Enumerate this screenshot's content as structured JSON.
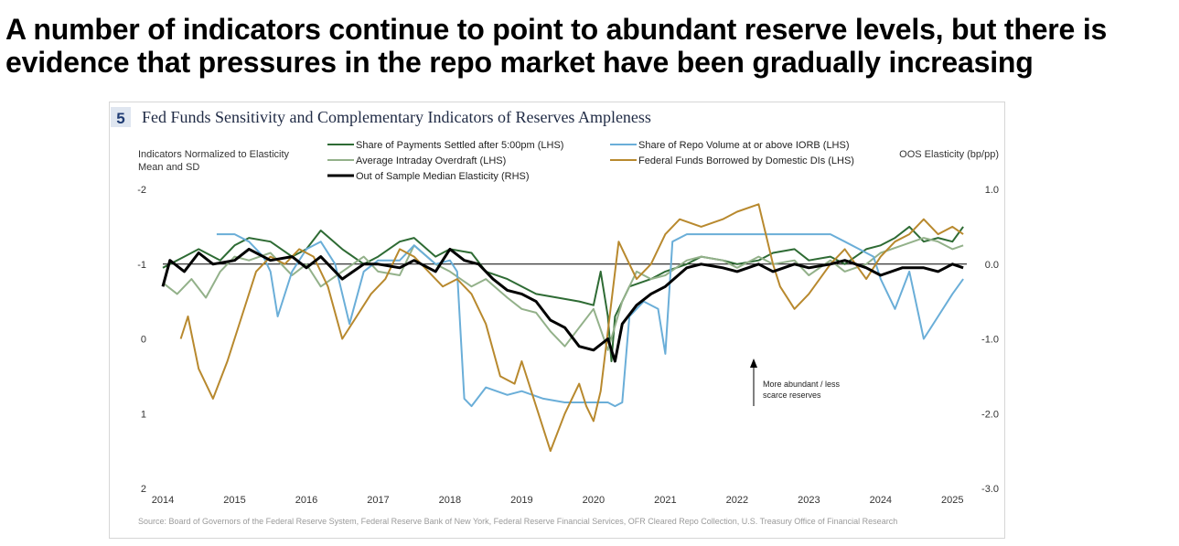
{
  "headline": {
    "line1": "A number of indicators continue to point to abundant reserve levels, but there is",
    "line2": "evidence that pressures in the repo market have been gradually increasing"
  },
  "figure": {
    "number": "5",
    "title": "Fed Funds Sensitivity and Complementary Indicators of Reserves Ampleness",
    "source": "Source: Board of Governors of the Federal Reserve System, Federal Reserve Bank of New York, Federal Reserve Financial Services, OFR Cleared Repo Collection, U.S. Treasury Office of Financial Research",
    "annotation_line1": "More abundant / less",
    "annotation_line2": "scarce reserves"
  },
  "chart_data": {
    "type": "line",
    "title": "Fed Funds Sensitivity and Complementary Indicators of Reserves Ampleness",
    "ylabel_left_line1": "Indicators Normalized to Elasticity",
    "ylabel_left_line2": "Mean and SD",
    "ylabel_right": "OOS Elasticity (bp/pp)",
    "y_left": {
      "range": [
        -2,
        2
      ],
      "inverted": true,
      "ticks": [
        "-2",
        "-1",
        "0",
        "1",
        "2"
      ]
    },
    "y_right": {
      "range": [
        -3.0,
        1.0
      ],
      "ticks": [
        "1.0",
        "0.0",
        "-1.0",
        "-2.0",
        "-3.0"
      ]
    },
    "x_range": [
      2014,
      2025.2
    ],
    "x_ticks": [
      "2014",
      "2015",
      "2016",
      "2017",
      "2018",
      "2019",
      "2020",
      "2021",
      "2022",
      "2023",
      "2024",
      "2025"
    ],
    "legend_position": "top",
    "grid": false,
    "colors": {
      "payments": "#2e6b34",
      "overdraft": "#93b18a",
      "median": "#000000",
      "repo": "#6aaed8",
      "borrowed": "#b8892e"
    },
    "series": [
      {
        "name": "Share of Payments Settled after 5:00pm (LHS)",
        "key": "payments",
        "axis": "left",
        "x": [
          2014.0,
          2014.3,
          2014.5,
          2014.8,
          2015.0,
          2015.2,
          2015.5,
          2015.8,
          2016.0,
          2016.2,
          2016.5,
          2016.8,
          2017.0,
          2017.3,
          2017.5,
          2017.8,
          2018.0,
          2018.3,
          2018.5,
          2018.8,
          2019.0,
          2019.2,
          2019.5,
          2019.8,
          2020.0,
          2020.1,
          2020.2,
          2020.25,
          2020.3,
          2020.5,
          2020.8,
          2021.0,
          2021.3,
          2021.5,
          2021.8,
          2022.0,
          2022.3,
          2022.5,
          2022.8,
          2023.0,
          2023.3,
          2023.5,
          2023.8,
          2024.0,
          2024.2,
          2024.4,
          2024.6,
          2024.8,
          2025.0,
          2025.15
        ],
        "values": [
          -0.95,
          -1.1,
          -1.2,
          -1.05,
          -1.25,
          -1.35,
          -1.3,
          -1.1,
          -1.2,
          -1.45,
          -1.2,
          -1.0,
          -1.1,
          -1.3,
          -1.35,
          -1.1,
          -1.2,
          -1.15,
          -0.9,
          -0.8,
          -0.7,
          -0.6,
          -0.55,
          -0.5,
          -0.45,
          -0.9,
          -0.3,
          0.3,
          -0.3,
          -0.7,
          -0.8,
          -0.9,
          -1.0,
          -1.1,
          -1.05,
          -1.0,
          -1.05,
          -1.15,
          -1.2,
          -1.05,
          -1.1,
          -1.0,
          -1.2,
          -1.25,
          -1.35,
          -1.5,
          -1.3,
          -1.35,
          -1.3,
          -1.5
        ]
      },
      {
        "name": "Average Intraday Overdraft (LHS)",
        "key": "overdraft",
        "axis": "left",
        "x": [
          2014.0,
          2014.2,
          2014.4,
          2014.6,
          2014.8,
          2015.0,
          2015.2,
          2015.5,
          2015.8,
          2016.0,
          2016.2,
          2016.5,
          2016.8,
          2017.0,
          2017.3,
          2017.5,
          2017.8,
          2018.0,
          2018.3,
          2018.5,
          2018.8,
          2019.0,
          2019.2,
          2019.4,
          2019.6,
          2019.8,
          2020.0,
          2020.2,
          2020.4,
          2020.6,
          2020.8,
          2021.0,
          2021.3,
          2021.5,
          2021.8,
          2022.0,
          2022.3,
          2022.5,
          2022.8,
          2023.0,
          2023.3,
          2023.5,
          2023.8,
          2024.0,
          2024.3,
          2024.6,
          2024.8,
          2025.0,
          2025.15
        ],
        "values": [
          -0.75,
          -0.6,
          -0.8,
          -0.55,
          -0.9,
          -1.1,
          -1.05,
          -1.15,
          -0.85,
          -1.0,
          -0.7,
          -0.9,
          -1.1,
          -0.9,
          -0.85,
          -1.25,
          -1.0,
          -0.9,
          -0.7,
          -0.8,
          -0.55,
          -0.4,
          -0.35,
          -0.1,
          0.1,
          -0.15,
          -0.4,
          0.15,
          -0.5,
          -0.9,
          -0.8,
          -0.85,
          -1.05,
          -1.1,
          -1.05,
          -0.95,
          -1.1,
          -1.0,
          -1.05,
          -0.85,
          -1.05,
          -0.9,
          -1.0,
          -1.15,
          -1.25,
          -1.35,
          -1.3,
          -1.2,
          -1.25
        ]
      },
      {
        "name": "Out of Sample Median Elasticity (RHS)",
        "key": "median",
        "axis": "right",
        "x": [
          2014.0,
          2014.1,
          2014.3,
          2014.5,
          2014.7,
          2015.0,
          2015.2,
          2015.5,
          2015.8,
          2016.0,
          2016.2,
          2016.5,
          2016.8,
          2017.0,
          2017.3,
          2017.5,
          2017.8,
          2018.0,
          2018.2,
          2018.4,
          2018.6,
          2018.8,
          2019.0,
          2019.2,
          2019.4,
          2019.6,
          2019.8,
          2020.0,
          2020.2,
          2020.3,
          2020.4,
          2020.6,
          2020.8,
          2021.0,
          2021.3,
          2021.5,
          2021.8,
          2022.0,
          2022.3,
          2022.5,
          2022.8,
          2023.0,
          2023.3,
          2023.5,
          2023.8,
          2024.0,
          2024.3,
          2024.6,
          2024.8,
          2025.0,
          2025.15
        ],
        "values": [
          -0.3,
          0.05,
          -0.1,
          0.15,
          0.0,
          0.05,
          0.2,
          0.05,
          0.1,
          -0.05,
          0.1,
          -0.2,
          0.0,
          0.0,
          -0.05,
          0.05,
          -0.1,
          0.2,
          0.05,
          0.0,
          -0.2,
          -0.35,
          -0.4,
          -0.5,
          -0.75,
          -0.85,
          -1.1,
          -1.15,
          -1.0,
          -1.3,
          -0.8,
          -0.55,
          -0.4,
          -0.3,
          -0.05,
          0.0,
          -0.05,
          -0.1,
          0.0,
          -0.1,
          0.0,
          -0.05,
          0.0,
          0.05,
          -0.05,
          -0.15,
          -0.05,
          -0.05,
          -0.1,
          0.0,
          -0.05
        ]
      },
      {
        "name": "Share of Repo Volume at or above IORB (LHS)",
        "key": "repo",
        "axis": "left",
        "x": [
          2014.75,
          2015.0,
          2015.2,
          2015.4,
          2015.5,
          2015.6,
          2015.8,
          2016.0,
          2016.2,
          2016.4,
          2016.6,
          2016.8,
          2017.0,
          2017.3,
          2017.5,
          2017.8,
          2018.0,
          2018.1,
          2018.2,
          2018.3,
          2018.5,
          2018.8,
          2019.0,
          2019.3,
          2019.6,
          2019.9,
          2020.2,
          2020.3,
          2020.4,
          2020.5,
          2020.7,
          2020.9,
          2021.0,
          2021.1,
          2021.3,
          2021.5,
          2021.8,
          2022.0,
          2022.5,
          2022.8,
          2023.0,
          2023.3,
          2023.5,
          2023.7,
          2023.9,
          2024.0,
          2024.2,
          2024.4,
          2024.6,
          2024.8,
          2025.0,
          2025.15
        ],
        "values": [
          -1.4,
          -1.4,
          -1.3,
          -1.1,
          -0.9,
          -0.3,
          -0.9,
          -1.2,
          -1.3,
          -1.0,
          -0.2,
          -0.9,
          -1.05,
          -1.05,
          -1.25,
          -1.0,
          -1.05,
          -0.9,
          0.8,
          0.9,
          0.65,
          0.75,
          0.7,
          0.8,
          0.85,
          0.85,
          0.85,
          0.9,
          0.85,
          -0.3,
          -0.5,
          -0.4,
          0.2,
          -1.3,
          -1.4,
          -1.4,
          -1.4,
          -1.4,
          -1.4,
          -1.4,
          -1.4,
          -1.4,
          -1.3,
          -1.2,
          -1.1,
          -0.8,
          -0.4,
          -0.9,
          0.0,
          -0.3,
          -0.6,
          -0.8
        ]
      },
      {
        "name": "Federal Funds Borrowed by Domestic DIs (LHS)",
        "key": "borrowed",
        "axis": "left",
        "x": [
          2014.25,
          2014.35,
          2014.5,
          2014.7,
          2014.9,
          2015.1,
          2015.3,
          2015.5,
          2015.7,
          2015.9,
          2016.1,
          2016.3,
          2016.5,
          2016.7,
          2016.9,
          2017.1,
          2017.3,
          2017.5,
          2017.7,
          2017.9,
          2018.1,
          2018.3,
          2018.5,
          2018.7,
          2018.9,
          2019.0,
          2019.2,
          2019.4,
          2019.6,
          2019.8,
          2019.9,
          2020.0,
          2020.1,
          2020.25,
          2020.35,
          2020.45,
          2020.6,
          2020.8,
          2021.0,
          2021.2,
          2021.5,
          2021.8,
          2022.0,
          2022.3,
          2022.5,
          2022.6,
          2022.8,
          2023.0,
          2023.3,
          2023.5,
          2023.8,
          2024.0,
          2024.2,
          2024.4,
          2024.6,
          2024.8,
          2025.0,
          2025.15
        ],
        "values": [
          0.0,
          -0.3,
          0.4,
          0.8,
          0.3,
          -0.3,
          -0.9,
          -1.1,
          -1.0,
          -1.2,
          -1.1,
          -0.7,
          0.0,
          -0.3,
          -0.6,
          -0.8,
          -1.2,
          -1.1,
          -0.9,
          -0.7,
          -0.8,
          -0.6,
          -0.2,
          0.5,
          0.6,
          0.3,
          0.9,
          1.5,
          1.0,
          0.6,
          0.9,
          1.1,
          0.7,
          -0.5,
          -1.3,
          -1.1,
          -0.8,
          -1.0,
          -1.4,
          -1.6,
          -1.5,
          -1.6,
          -1.7,
          -1.8,
          -1.0,
          -0.7,
          -0.4,
          -0.6,
          -1.0,
          -1.2,
          -0.8,
          -1.1,
          -1.3,
          -1.4,
          -1.6,
          -1.4,
          -1.5,
          -1.4
        ]
      }
    ]
  }
}
